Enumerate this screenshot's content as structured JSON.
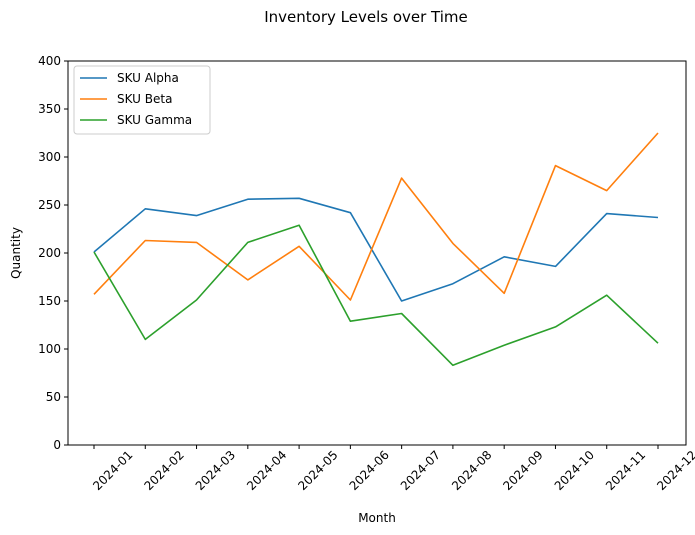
{
  "chart_data": {
    "type": "line",
    "title": "Inventory Levels over Time",
    "xlabel": "Month",
    "ylabel": "Quantity",
    "ylim": [
      0,
      400
    ],
    "yticks": [
      0,
      50,
      100,
      150,
      200,
      250,
      300,
      350,
      400
    ],
    "categories": [
      "2024-01",
      "2024-02",
      "2024-03",
      "2024-04",
      "2024-05",
      "2024-06",
      "2024-07",
      "2024-08",
      "2024-09",
      "2024-10",
      "2024-11",
      "2024-12"
    ],
    "legend_position": "top-left",
    "grid": false,
    "series": [
      {
        "name": "SKU Alpha",
        "color": "#1f77b4",
        "values": [
          201,
          246,
          239,
          256,
          257,
          242,
          150,
          168,
          196,
          186,
          241,
          237
        ]
      },
      {
        "name": "SKU Beta",
        "color": "#ff7f0e",
        "values": [
          157,
          213,
          211,
          172,
          207,
          151,
          278,
          210,
          158,
          291,
          265,
          325
        ]
      },
      {
        "name": "SKU Gamma",
        "color": "#2ca02c",
        "values": [
          201,
          110,
          151,
          211,
          229,
          129,
          137,
          83,
          104,
          123,
          156,
          106
        ]
      }
    ]
  }
}
